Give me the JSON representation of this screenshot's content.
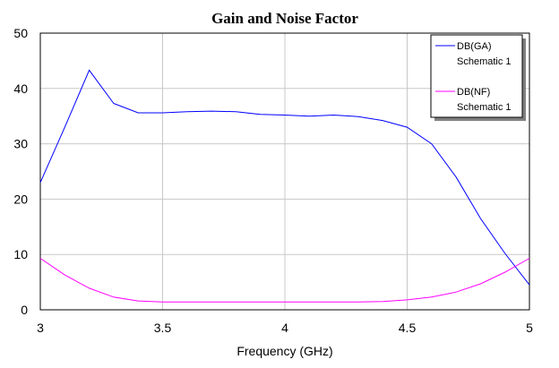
{
  "chart_data": {
    "type": "line",
    "title": "Gain and Noise Factor",
    "xlabel": "Frequency (GHz)",
    "ylabel": "",
    "xlim": [
      3,
      5
    ],
    "ylim": [
      0,
      50
    ],
    "xticks": [
      3,
      3.5,
      4,
      4.5,
      5
    ],
    "yticks": [
      0,
      10,
      20,
      30,
      40,
      50
    ],
    "xtick_labels": [
      "3",
      "3.5",
      "4",
      "4.5",
      "5"
    ],
    "ytick_labels": [
      "0",
      "10",
      "20",
      "30",
      "40",
      "50"
    ],
    "grid": true,
    "legend_position": "top-right",
    "series": [
      {
        "name": "DB(GA)",
        "sub_label": "Schematic 1",
        "color": "#0000ff",
        "x": [
          3.0,
          3.1,
          3.2,
          3.3,
          3.4,
          3.5,
          3.6,
          3.7,
          3.8,
          3.9,
          4.0,
          4.1,
          4.2,
          4.3,
          4.4,
          4.5,
          4.6,
          4.7,
          4.8,
          4.9,
          5.0
        ],
        "y": [
          23.0,
          33.0,
          43.3,
          37.3,
          35.6,
          35.6,
          35.8,
          35.9,
          35.8,
          35.3,
          35.2,
          35.0,
          35.2,
          34.9,
          34.2,
          33.0,
          30.0,
          24.0,
          16.5,
          10.2,
          4.5
        ]
      },
      {
        "name": "DB(NF)",
        "sub_label": "Schematic 1",
        "color": "#ff00ff",
        "x": [
          3.0,
          3.1,
          3.2,
          3.3,
          3.4,
          3.5,
          3.6,
          3.7,
          3.8,
          3.9,
          4.0,
          4.1,
          4.2,
          4.3,
          4.4,
          4.5,
          4.6,
          4.7,
          4.8,
          4.9,
          5.0
        ],
        "y": [
          9.3,
          6.3,
          3.9,
          2.3,
          1.6,
          1.4,
          1.4,
          1.4,
          1.4,
          1.4,
          1.4,
          1.4,
          1.4,
          1.4,
          1.5,
          1.8,
          2.3,
          3.2,
          4.7,
          6.8,
          9.3
        ]
      }
    ]
  }
}
